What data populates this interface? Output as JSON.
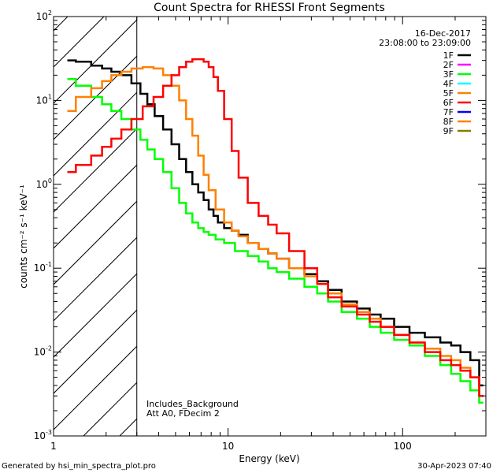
{
  "chart_data": {
    "type": "line",
    "title": "Count Spectra for RHESSI Front Segments",
    "xlabel": "Energy (keV)",
    "ylabel": "counts cm⁻² s⁻¹ keV⁻¹",
    "xscale": "log",
    "yscale": "log",
    "xlim": [
      1,
      300
    ],
    "ylim": [
      0.001,
      100
    ],
    "x_ticks": [
      {
        "value": 1,
        "label": "1"
      },
      {
        "value": 10,
        "label": "10"
      },
      {
        "value": 100,
        "label": "100"
      }
    ],
    "y_ticks": [
      {
        "value": 0.001,
        "base": "10",
        "exp": "-3"
      },
      {
        "value": 0.01,
        "base": "10",
        "exp": "-2"
      },
      {
        "value": 0.1,
        "base": "10",
        "exp": "-1"
      },
      {
        "value": 1,
        "base": "10",
        "exp": "0"
      },
      {
        "value": 10,
        "base": "10",
        "exp": "1"
      },
      {
        "value": 100,
        "base": "10",
        "exp": "2"
      }
    ],
    "date": "16-Dec-2017",
    "time_range": "23:08:00 to 23:09:00",
    "shaded_region": {
      "x_min": 1,
      "x_max": 3
    },
    "notes": [
      "Includes_Background",
      "Att A0, FDecim 2"
    ],
    "legend": [
      {
        "name": "1F",
        "color": "#000000"
      },
      {
        "name": "2F",
        "color": "#ff00ff"
      },
      {
        "name": "3F",
        "color": "#00ff00"
      },
      {
        "name": "4F",
        "color": "#00ffff"
      },
      {
        "name": "5F",
        "color": "#ff8000"
      },
      {
        "name": "6F",
        "color": "#ff0000"
      },
      {
        "name": "7F",
        "color": "#0000ff"
      },
      {
        "name": "8F",
        "color": "#ff8000"
      },
      {
        "name": "9F",
        "color": "#808000"
      }
    ],
    "series": [
      {
        "name": "1F",
        "color": "#000000",
        "x": [
          1.2,
          1.5,
          1.8,
          2.0,
          2.3,
          2.6,
          3.0,
          3.3,
          3.6,
          4.0,
          4.5,
          5.0,
          5.5,
          6.0,
          6.5,
          7.0,
          7.5,
          8.0,
          8.5,
          9.0,
          10,
          11,
          12,
          14,
          16,
          18,
          20,
          25,
          30,
          35,
          40,
          50,
          60,
          70,
          80,
          100,
          120,
          150,
          180,
          200,
          230,
          260,
          290
        ],
        "y": [
          30,
          29,
          26,
          24,
          22,
          20,
          16,
          12,
          9,
          6.5,
          4.5,
          3.0,
          2.0,
          1.4,
          1.0,
          0.8,
          0.65,
          0.5,
          0.42,
          0.35,
          0.3,
          0.28,
          0.25,
          0.2,
          0.17,
          0.15,
          0.13,
          0.1,
          0.085,
          0.07,
          0.055,
          0.04,
          0.033,
          0.028,
          0.025,
          0.02,
          0.017,
          0.015,
          0.013,
          0.012,
          0.01,
          0.008,
          0.004
        ]
      },
      {
        "name": "3F",
        "color": "#00ff00",
        "x": [
          1.2,
          1.5,
          1.8,
          2.0,
          2.3,
          2.6,
          3.0,
          3.3,
          3.6,
          4.0,
          4.5,
          5.0,
          5.5,
          6.0,
          6.5,
          7.0,
          7.5,
          8.0,
          9.0,
          10,
          12,
          14,
          16,
          18,
          20,
          25,
          30,
          35,
          40,
          50,
          60,
          70,
          80,
          100,
          120,
          150,
          180,
          200,
          230,
          260,
          290
        ],
        "y": [
          18,
          15,
          11,
          9,
          7.5,
          6.0,
          4.5,
          3.4,
          2.6,
          2.0,
          1.4,
          0.9,
          0.6,
          0.45,
          0.35,
          0.3,
          0.27,
          0.25,
          0.22,
          0.2,
          0.16,
          0.14,
          0.12,
          0.1,
          0.09,
          0.075,
          0.06,
          0.05,
          0.04,
          0.03,
          0.025,
          0.02,
          0.017,
          0.014,
          0.012,
          0.009,
          0.007,
          0.0055,
          0.0045,
          0.0035,
          0.0025
        ]
      },
      {
        "name": "8F",
        "color": "#ff8000",
        "x": [
          1.2,
          1.5,
          1.8,
          2.0,
          2.3,
          2.6,
          3.0,
          3.5,
          4.0,
          4.5,
          5.0,
          5.5,
          6.0,
          6.5,
          7.0,
          7.5,
          8.0,
          9.0,
          10,
          11,
          12,
          14,
          16,
          18,
          20,
          25,
          30,
          35,
          40,
          50,
          60,
          70,
          80,
          100,
          120,
          150,
          180,
          200,
          230,
          260,
          290
        ],
        "y": [
          7.5,
          11,
          14,
          17,
          20,
          22,
          24,
          25,
          24,
          20,
          15,
          10,
          6,
          3.8,
          2.2,
          1.3,
          0.85,
          0.5,
          0.35,
          0.28,
          0.24,
          0.2,
          0.17,
          0.15,
          0.13,
          0.1,
          0.08,
          0.065,
          0.05,
          0.037,
          0.03,
          0.025,
          0.02,
          0.016,
          0.013,
          0.011,
          0.009,
          0.008,
          0.0065,
          0.005,
          0.003
        ]
      },
      {
        "name": "6F",
        "color": "#ff0000",
        "x": [
          1.2,
          1.5,
          1.8,
          2.0,
          2.3,
          2.6,
          3.0,
          3.5,
          4.0,
          4.5,
          5.0,
          5.5,
          6.0,
          6.5,
          7.0,
          7.5,
          8.0,
          8.5,
          9.0,
          10,
          11,
          12,
          14,
          16,
          18,
          20,
          25,
          30,
          35,
          40,
          50,
          60,
          70,
          80,
          100,
          120,
          150,
          180,
          200,
          230,
          260,
          290
        ],
        "y": [
          1.4,
          1.7,
          2.2,
          2.8,
          3.5,
          4.5,
          6.0,
          8.5,
          11,
          15,
          20,
          25,
          29,
          31,
          31,
          29,
          25,
          19,
          13,
          6,
          2.5,
          1.2,
          0.6,
          0.42,
          0.33,
          0.26,
          0.16,
          0.1,
          0.065,
          0.045,
          0.035,
          0.028,
          0.023,
          0.02,
          0.016,
          0.013,
          0.01,
          0.008,
          0.007,
          0.006,
          0.005,
          0.003
        ]
      }
    ],
    "footer_left": "Generated by hsi_min_spectra_plot.pro",
    "footer_right": "30-Apr-2023 07:40"
  }
}
